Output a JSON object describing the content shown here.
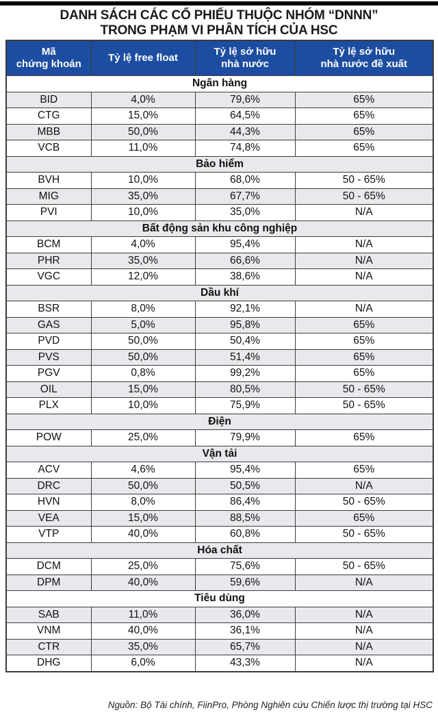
{
  "title": {
    "line1": "DANH SÁCH CÁC CỔ PHIẾU THUỘC NHÓM “DNNN”",
    "line2": "TRONG PHẠM VI PHÂN TÍCH CỦA HSC"
  },
  "table": {
    "columns": [
      {
        "lines": [
          "Mã",
          "chứng khoán"
        ]
      },
      {
        "lines": [
          "Tỷ lệ free float"
        ]
      },
      {
        "lines": [
          "Tỷ lệ sở hữu",
          "nhà nước"
        ]
      },
      {
        "lines": [
          "Tỷ lệ sở hữu",
          "nhà nước đề xuất"
        ]
      }
    ],
    "sections": [
      {
        "name": "Ngân hàng",
        "rows": [
          {
            "ticker": "BID",
            "free_float": "4,0%",
            "state_ownership": "79,6%",
            "proposed": "65%"
          },
          {
            "ticker": "CTG",
            "free_float": "15,0%",
            "state_ownership": "64,5%",
            "proposed": "65%"
          },
          {
            "ticker": "MBB",
            "free_float": "50,0%",
            "state_ownership": "44,3%",
            "proposed": "65%"
          },
          {
            "ticker": "VCB",
            "free_float": "11,0%",
            "state_ownership": "74,8%",
            "proposed": "65%"
          }
        ]
      },
      {
        "name": "Bảo hiểm",
        "rows": [
          {
            "ticker": "BVH",
            "free_float": "10,0%",
            "state_ownership": "68,0%",
            "proposed": "50 - 65%"
          },
          {
            "ticker": "MIG",
            "free_float": "35,0%",
            "state_ownership": "67,7%",
            "proposed": "50 - 65%"
          },
          {
            "ticker": "PVI",
            "free_float": "10,0%",
            "state_ownership": "35,0%",
            "proposed": "N/A"
          }
        ]
      },
      {
        "name": "Bất động sản khu công nghiệp",
        "rows": [
          {
            "ticker": "BCM",
            "free_float": "4,0%",
            "state_ownership": "95,4%",
            "proposed": "N/A"
          },
          {
            "ticker": "PHR",
            "free_float": "35,0%",
            "state_ownership": "66,6%",
            "proposed": "N/A"
          },
          {
            "ticker": "VGC",
            "free_float": "12,0%",
            "state_ownership": "38,6%",
            "proposed": "N/A"
          }
        ]
      },
      {
        "name": "Dầu khí",
        "rows": [
          {
            "ticker": "BSR",
            "free_float": "8,0%",
            "state_ownership": "92,1%",
            "proposed": "N/A"
          },
          {
            "ticker": "GAS",
            "free_float": "5,0%",
            "state_ownership": "95,8%",
            "proposed": "65%"
          },
          {
            "ticker": "PVD",
            "free_float": "50,0%",
            "state_ownership": "50,4%",
            "proposed": "65%"
          },
          {
            "ticker": "PVS",
            "free_float": "50,0%",
            "state_ownership": "51,4%",
            "proposed": "65%"
          },
          {
            "ticker": "PGV",
            "free_float": "0,8%",
            "state_ownership": "99,2%",
            "proposed": "65%"
          },
          {
            "ticker": "OIL",
            "free_float": "15,0%",
            "state_ownership": "80,5%",
            "proposed": "50 - 65%"
          },
          {
            "ticker": "PLX",
            "free_float": "10,0%",
            "state_ownership": "75,9%",
            "proposed": "50 - 65%"
          }
        ]
      },
      {
        "name": "Điện",
        "rows": [
          {
            "ticker": "POW",
            "free_float": "25,0%",
            "state_ownership": "79,9%",
            "proposed": "65%"
          }
        ]
      },
      {
        "name": "Vận tải",
        "rows": [
          {
            "ticker": "ACV",
            "free_float": "4,6%",
            "state_ownership": "95,4%",
            "proposed": "65%"
          },
          {
            "ticker": "DRC",
            "free_float": "50,0%",
            "state_ownership": "50,5%",
            "proposed": "N/A"
          },
          {
            "ticker": "HVN",
            "free_float": "8,0%",
            "state_ownership": "86,4%",
            "proposed": "50 - 65%"
          },
          {
            "ticker": "VEA",
            "free_float": "15,0%",
            "state_ownership": "88,5%",
            "proposed": "65%"
          },
          {
            "ticker": "VTP",
            "free_float": "40,0%",
            "state_ownership": "60,8%",
            "proposed": "50 - 65%"
          }
        ]
      },
      {
        "name": "Hóa chất",
        "rows": [
          {
            "ticker": "DCM",
            "free_float": "25,0%",
            "state_ownership": "75,6%",
            "proposed": "50 - 65%"
          },
          {
            "ticker": "DPM",
            "free_float": "40,0%",
            "state_ownership": "59,6%",
            "proposed": "N/A"
          }
        ]
      },
      {
        "name": "Tiêu dùng",
        "rows": [
          {
            "ticker": "SAB",
            "free_float": "11,0%",
            "state_ownership": "36,0%",
            "proposed": "N/A"
          },
          {
            "ticker": "VNM",
            "free_float": "40,0%",
            "state_ownership": "36,1%",
            "proposed": "N/A"
          },
          {
            "ticker": "CTR",
            "free_float": "35,0%",
            "state_ownership": "65,7%",
            "proposed": "N/A"
          },
          {
            "ticker": "DHG",
            "free_float": "6,0%",
            "state_ownership": "43,3%",
            "proposed": "N/A"
          }
        ]
      }
    ]
  },
  "footer": {
    "source": "Nguồn: Bộ Tài chính, FiinPro, Phòng Nghiên cứu Chiến lược thị trường tại HSC"
  },
  "colors": {
    "header_bg": "#1c4da0",
    "header_text": "#ffffff",
    "alt_row_bg": "#e9e9ed",
    "border": "#3b3b3b",
    "title_text": "#1a1a1a"
  }
}
